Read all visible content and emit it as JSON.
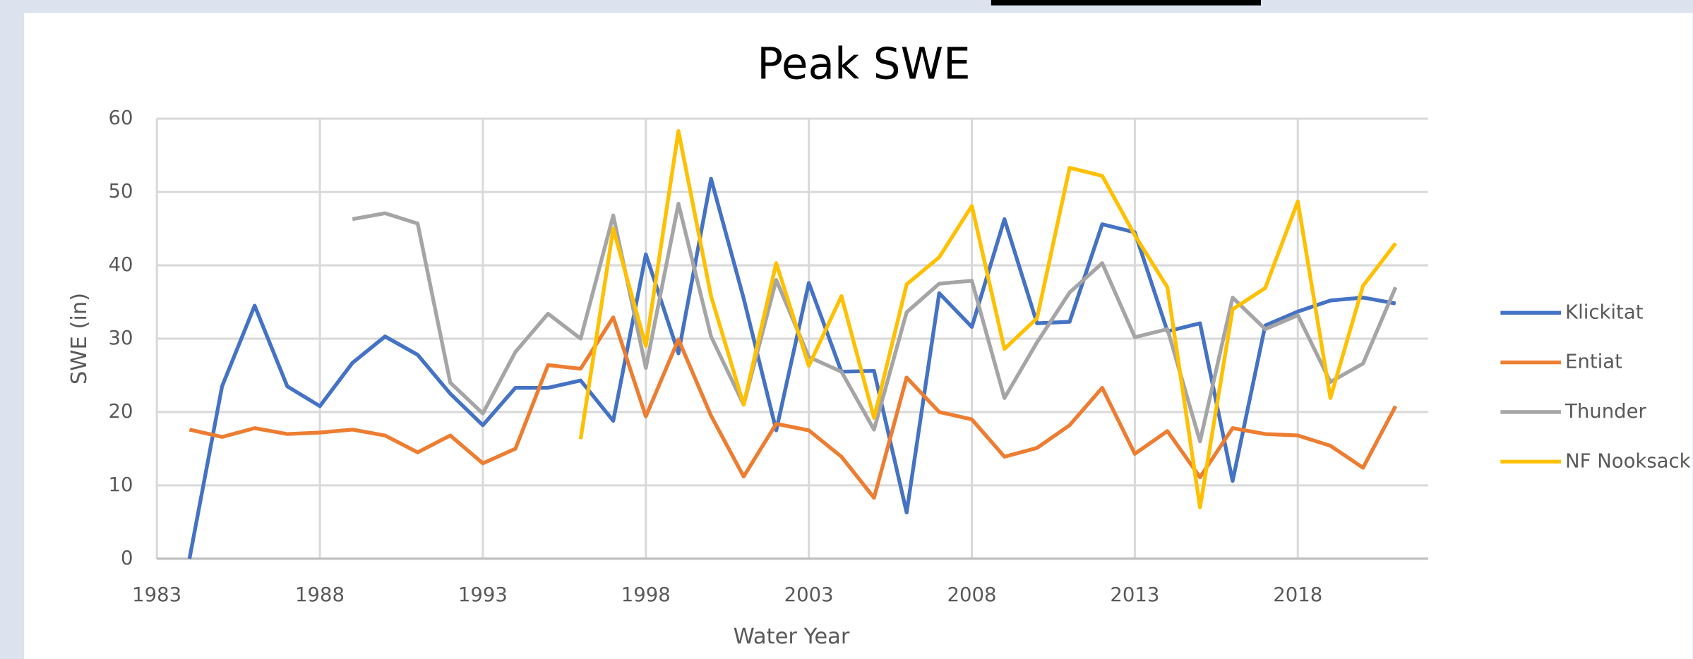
{
  "chart_data": {
    "type": "line",
    "title": "Peak SWE",
    "x_label": "Water Year",
    "y_label": "SWE (in)",
    "x": [
      1984,
      1985,
      1986,
      1987,
      1988,
      1989,
      1990,
      1991,
      1992,
      1993,
      1994,
      1995,
      1996,
      1997,
      1998,
      1999,
      2000,
      2001,
      2002,
      2003,
      2004,
      2005,
      2006,
      2007,
      2008,
      2009,
      2010,
      2011,
      2012,
      2013,
      2014,
      2015,
      2016,
      2017,
      2018,
      2019,
      2020,
      2021
    ],
    "series": [
      {
        "name": "Klickitat",
        "color": "#4472c4",
        "values": [
          0,
          23.5,
          34.5,
          23.5,
          20.8,
          26.7,
          30.3,
          27.8,
          22.5,
          18.2,
          23.3,
          23.3,
          24.3,
          18.8,
          41.5,
          28,
          51.8,
          35.5,
          17.5,
          37.6,
          25.5,
          25.6,
          6.3,
          36.2,
          31.6,
          46.3,
          32.1,
          32.3,
          45.6,
          44.5,
          31,
          32.1,
          10.6,
          31.8,
          33.7,
          35.2,
          35.6,
          34.8
        ]
      },
      {
        "name": "Entiat",
        "color": "#ed7d31",
        "values": [
          17.6,
          16.6,
          17.8,
          17,
          17.2,
          17.6,
          16.8,
          14.5,
          16.8,
          13,
          15,
          26.4,
          25.9,
          32.9,
          19.4,
          29.9,
          19.5,
          11.2,
          18.4,
          17.5,
          13.9,
          8.3,
          24.7,
          20,
          19,
          13.9,
          15.1,
          18.2,
          23.3,
          14.3,
          17.4,
          11.1,
          17.8,
          17,
          16.8,
          15.4,
          12.4,
          20.8
        ]
      },
      {
        "name": "Thunder",
        "color": "#a5a5a5",
        "values": [
          null,
          null,
          null,
          null,
          null,
          46.3,
          47.1,
          45.7,
          24,
          19.8,
          28.2,
          33.4,
          30,
          46.8,
          26,
          48.4,
          30.3,
          21,
          38,
          27.5,
          25.5,
          17.6,
          33.6,
          37.5,
          37.9,
          21.9,
          29.5,
          36.3,
          40.3,
          30.2,
          31.3,
          16,
          35.6,
          31.3,
          33.2,
          24.1,
          26.6,
          37
        ]
      },
      {
        "name": "NF Nooksack",
        "color": "#ffc000",
        "values": [
          null,
          null,
          null,
          null,
          null,
          null,
          null,
          null,
          null,
          null,
          null,
          null,
          16.3,
          45,
          29,
          58.3,
          35.8,
          21,
          40.3,
          26.3,
          35.8,
          19.2,
          37.4,
          41.1,
          48.1,
          28.6,
          32.8,
          53.3,
          52.2,
          44.1,
          37,
          7,
          34,
          36.9,
          48.7,
          21.9,
          37.2,
          43
        ]
      }
    ],
    "xlim": [
      1983,
      2022
    ],
    "xticks": [
      1983,
      1988,
      1993,
      1998,
      2003,
      2008,
      2013,
      2018
    ],
    "ylim": [
      0,
      60
    ],
    "yticks": [
      0,
      10,
      20,
      30,
      40,
      50,
      60
    ],
    "grid": true,
    "legend": "right"
  }
}
